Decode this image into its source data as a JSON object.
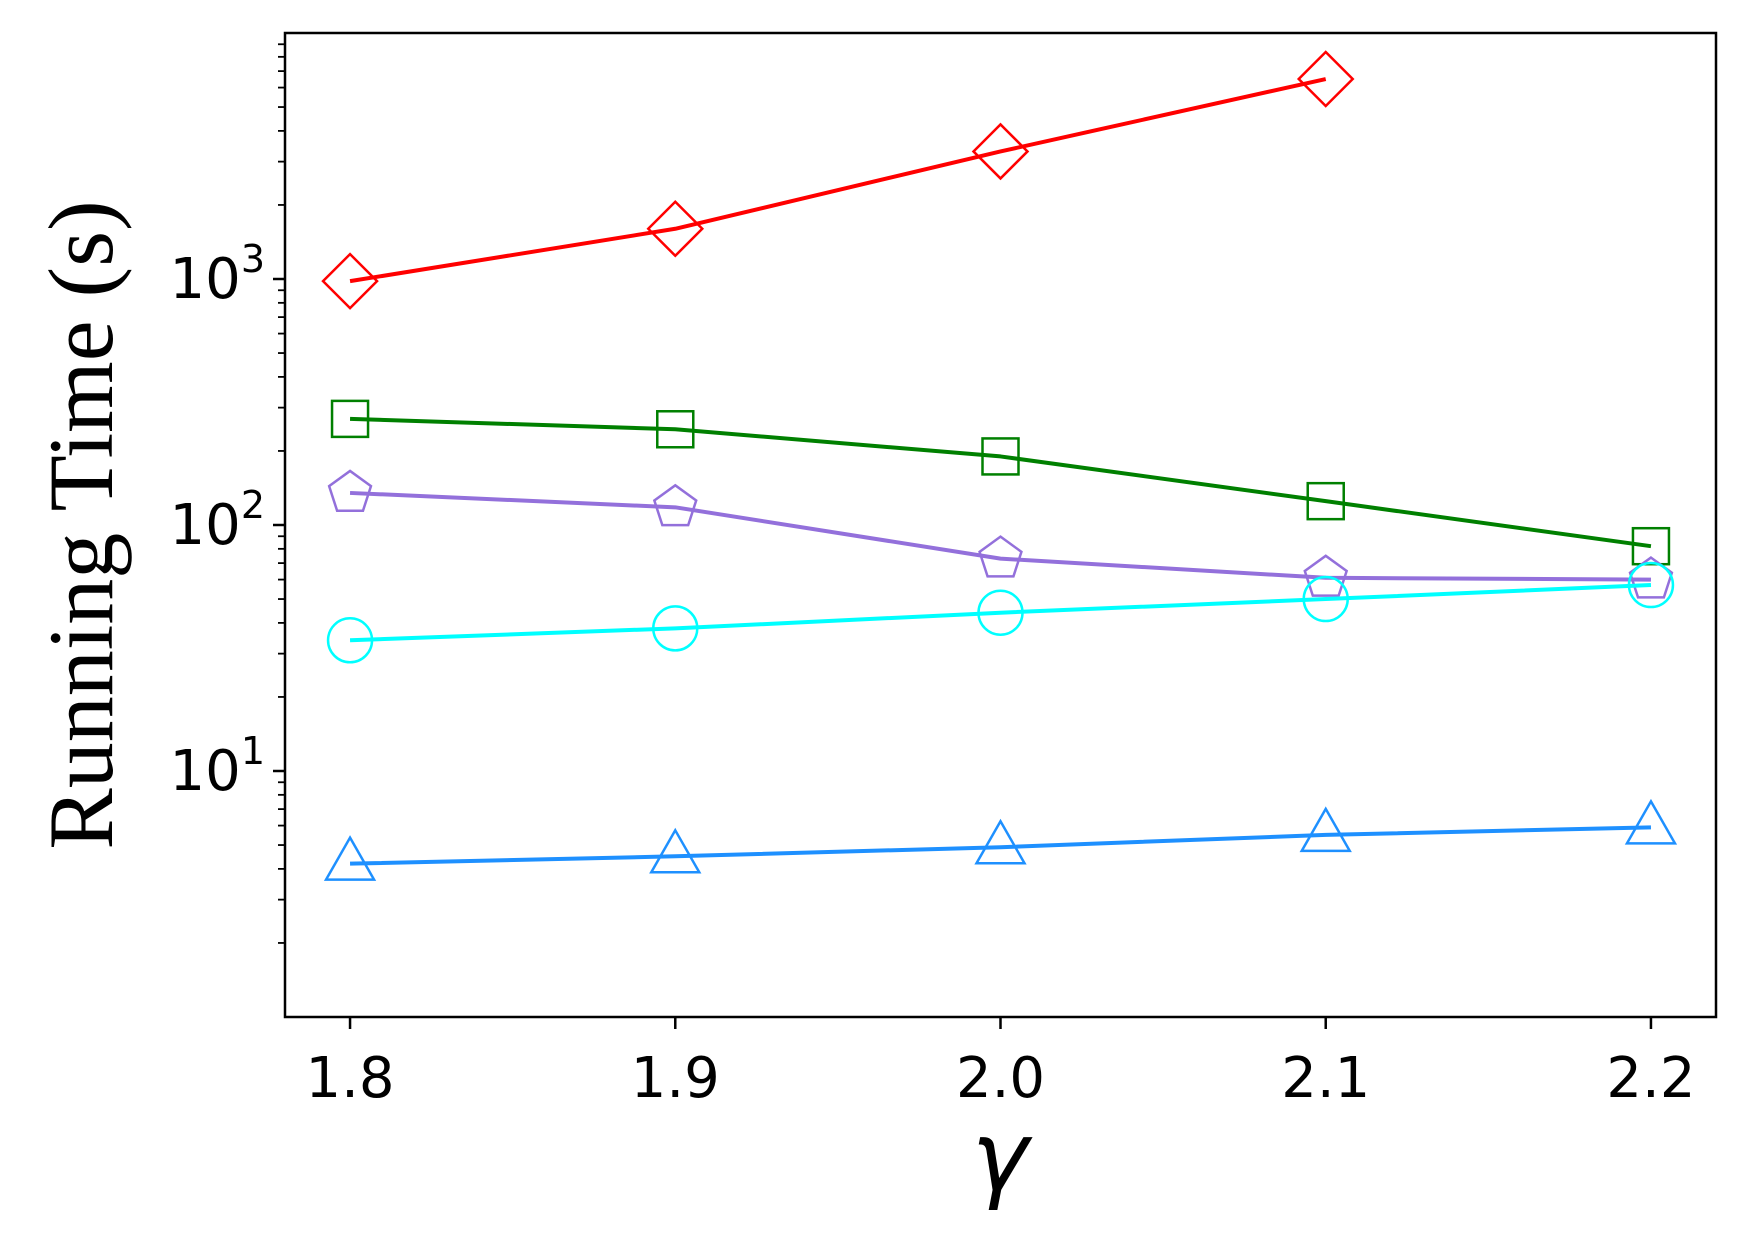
{
  "chart_data": {
    "type": "line",
    "xlabel": "γ",
    "ylabel": "Running Time (s)",
    "yscale": "log",
    "xlim": [
      1.78,
      2.22
    ],
    "ylim": [
      1.0,
      10000
    ],
    "x": [
      1.8,
      1.9,
      2.0,
      2.1,
      2.2
    ],
    "x_tick_labels": [
      "1.8",
      "1.9",
      "2.0",
      "2.1",
      "2.2"
    ],
    "y_ticks": [
      {
        "value": 10,
        "base": "10",
        "exp": "1"
      },
      {
        "value": 100,
        "base": "10",
        "exp": "2"
      },
      {
        "value": 1000,
        "base": "10",
        "exp": "3"
      }
    ],
    "grid": false,
    "legend": "none",
    "series": [
      {
        "color": "#ff0000",
        "marker": "diamond",
        "values": [
          980,
          1600,
          3300,
          6500,
          null
        ]
      },
      {
        "color": "#008000",
        "marker": "square",
        "values": [
          270,
          245,
          190,
          125,
          82
        ]
      },
      {
        "color": "#9370db",
        "marker": "pentagon",
        "values": [
          135,
          118,
          73,
          61,
          60
        ]
      },
      {
        "color": "#00ffff",
        "marker": "circle",
        "values": [
          34,
          38,
          44,
          50,
          57
        ]
      },
      {
        "color": "#1e90ff",
        "marker": "triangle",
        "values": [
          4.2,
          4.5,
          4.9,
          5.5,
          5.9
        ]
      }
    ]
  }
}
